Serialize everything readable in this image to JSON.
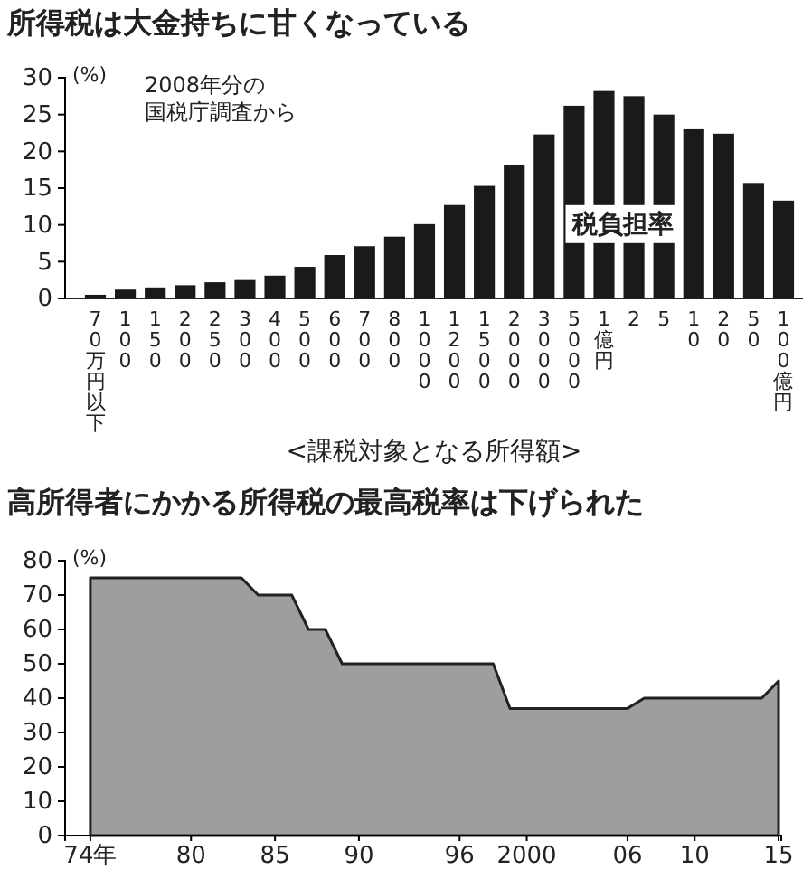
{
  "chart_data": [
    {
      "type": "bar",
      "title": "所得税は大金持ちに甘くなっている",
      "ylabel": "(%)",
      "xlabel": "<課税対象となる所得額>",
      "annotations": [
        "2008年分の国税庁調査から"
      ],
      "categories": [
        "70万円以下",
        "100",
        "150",
        "200",
        "250",
        "300",
        "400",
        "500",
        "600",
        "700",
        "800",
        "1000",
        "1200",
        "1500",
        "2000",
        "3000",
        "5000",
        "1億円",
        "2",
        "5",
        "10",
        "20",
        "50",
        "100億円"
      ],
      "series": [
        {
          "name": "税負担率",
          "color": "#1a1a1a",
          "values": [
            0.5,
            1.2,
            1.5,
            1.8,
            2.2,
            2.5,
            3.1,
            4.3,
            5.9,
            7.1,
            8.4,
            10.1,
            12.7,
            15.3,
            18.2,
            22.3,
            26.2,
            28.2,
            27.5,
            25.0,
            23.0,
            22.4,
            15.7,
            13.3
          ]
        }
      ],
      "ylim": [
        0,
        30
      ],
      "yticks": [
        0,
        5,
        10,
        15,
        20,
        25,
        30
      ],
      "grid": false
    },
    {
      "type": "area",
      "title": "高所得者にかかる所得税の最高税率は下げられた",
      "ylabel": "(%)",
      "x": [
        "1974",
        "1983",
        "1984",
        "1986",
        "1987",
        "1988",
        "1989",
        "1998",
        "1999",
        "2006",
        "2007",
        "2014",
        "2015"
      ],
      "series": [
        {
          "color": "#9e9e9e",
          "values": [
            75,
            75,
            70,
            70,
            60,
            60,
            50,
            50,
            37,
            37,
            40,
            40,
            45
          ]
        }
      ],
      "xlim": [
        "1972-07",
        "2015-03"
      ],
      "xticks": [
        {
          "value": "1974",
          "label": "74年"
        },
        {
          "value": "1980",
          "label": "80"
        },
        {
          "value": "1985",
          "label": "85"
        },
        {
          "value": "1990",
          "label": "90"
        },
        {
          "value": "1996",
          "label": "96"
        },
        {
          "value": "2000",
          "label": "2000"
        },
        {
          "value": "2006",
          "label": "06"
        },
        {
          "value": "2010",
          "label": "10"
        },
        {
          "value": "2015",
          "label": "15"
        }
      ],
      "ylim": [
        0,
        80
      ],
      "yticks": [
        0,
        10,
        20,
        30,
        40,
        50,
        60,
        70,
        80
      ],
      "grid": false
    }
  ]
}
